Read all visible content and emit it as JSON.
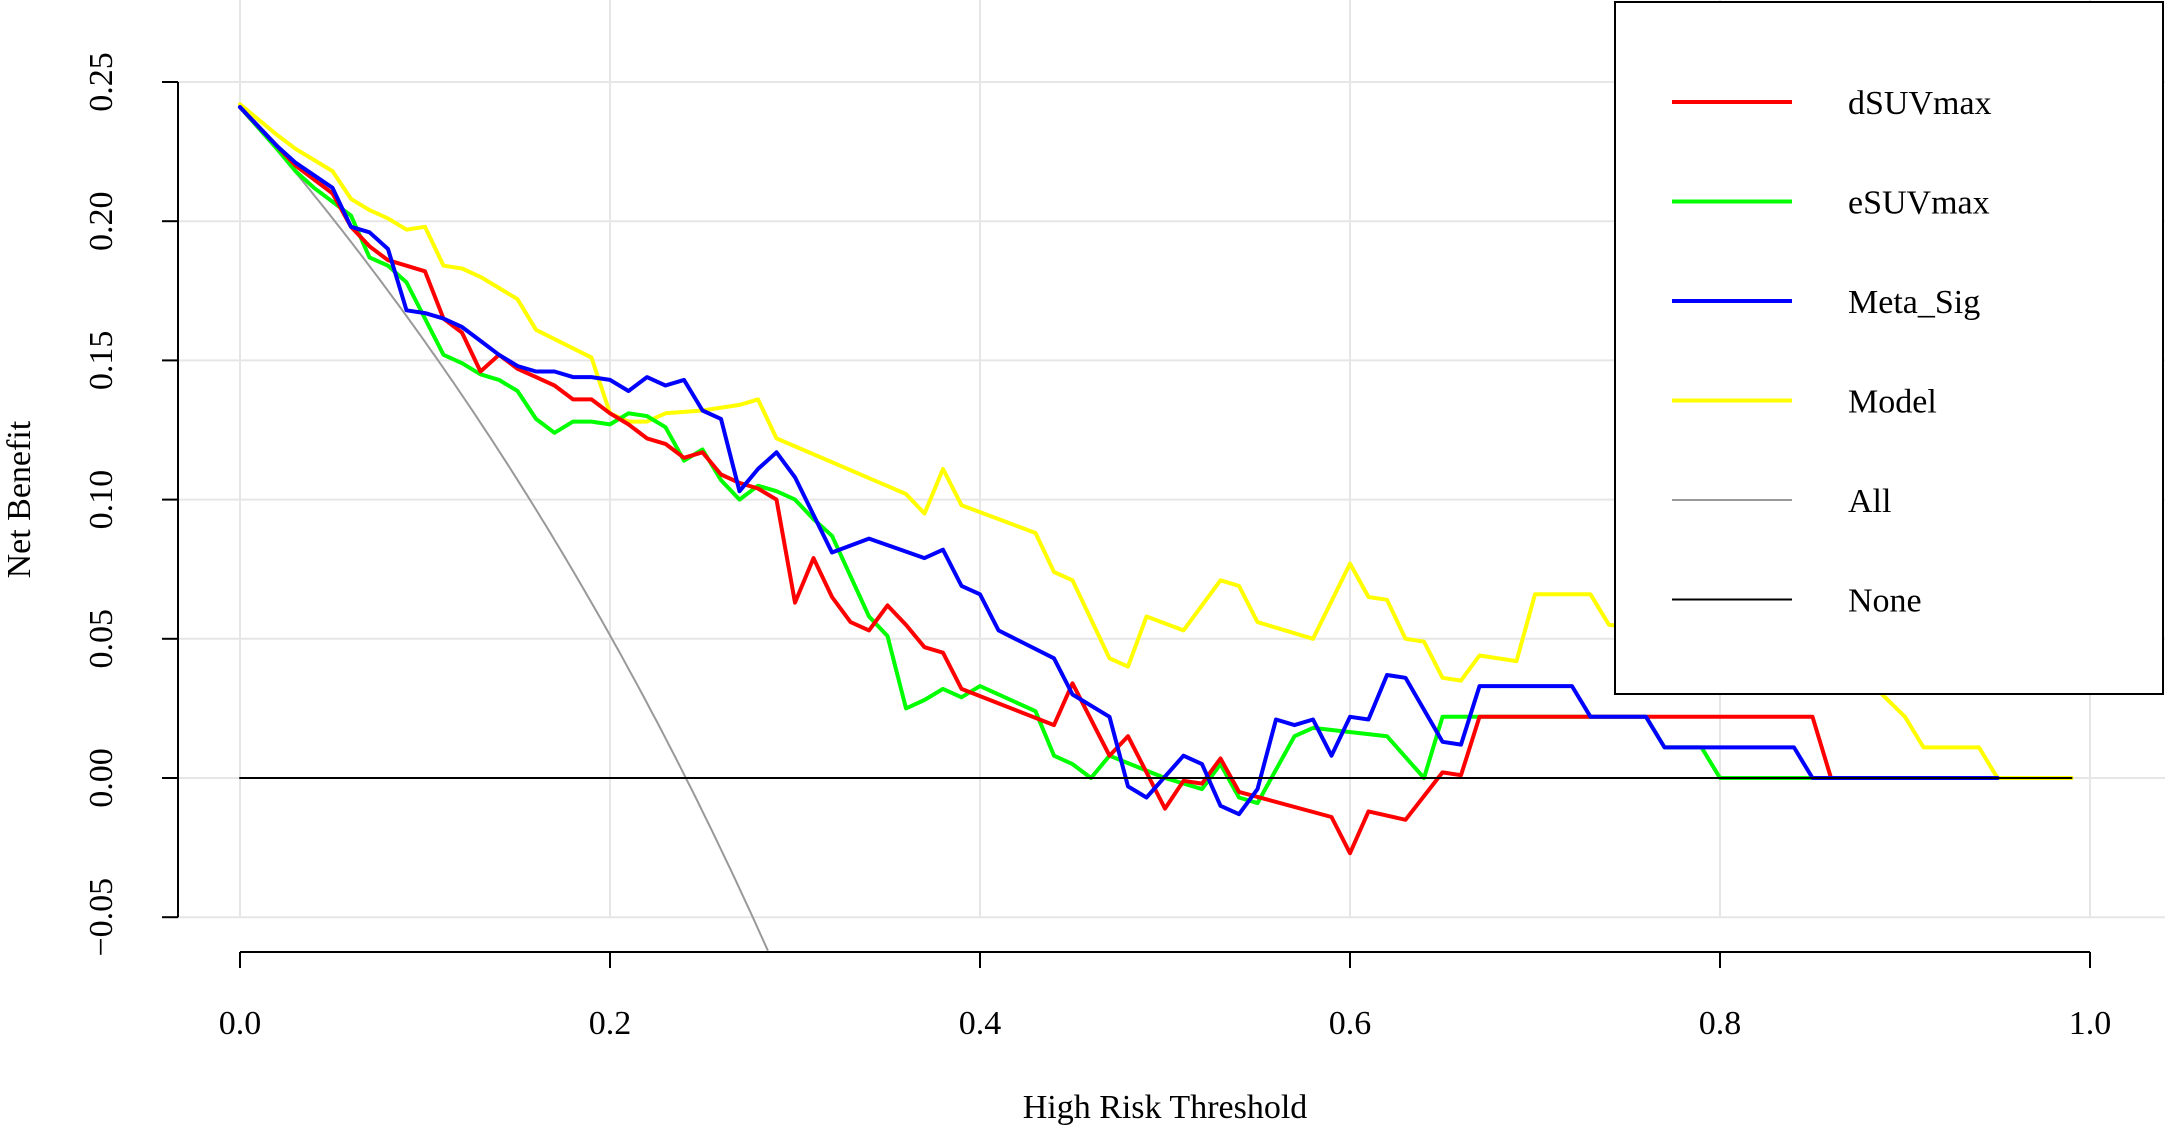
{
  "chart_data": {
    "type": "line",
    "title": "",
    "xlabel": "High Risk Threshold",
    "ylabel": "Net Benefit",
    "xlim": [
      0,
      1
    ],
    "ylim": [
      -0.05,
      0.25
    ],
    "x_ticks": [
      "0.0",
      "0.2",
      "0.4",
      "0.6",
      "0.8",
      "1.0"
    ],
    "y_ticks": [
      "−0.05",
      "0.00",
      "0.05",
      "0.10",
      "0.15",
      "0.20",
      "0.25"
    ],
    "grid": true,
    "legend_position": "top-right",
    "series": [
      {
        "name": "dSUVmax",
        "color": "#ff0000",
        "points": [
          [
            0.0,
            0.241
          ],
          [
            0.02,
            0.227
          ],
          [
            0.03,
            0.22
          ],
          [
            0.05,
            0.21
          ],
          [
            0.06,
            0.198
          ],
          [
            0.07,
            0.191
          ],
          [
            0.08,
            0.186
          ],
          [
            0.09,
            0.184
          ],
          [
            0.1,
            0.182
          ],
          [
            0.11,
            0.165
          ],
          [
            0.12,
            0.16
          ],
          [
            0.13,
            0.146
          ],
          [
            0.14,
            0.152
          ],
          [
            0.15,
            0.147
          ],
          [
            0.16,
            0.144
          ],
          [
            0.17,
            0.141
          ],
          [
            0.18,
            0.136
          ],
          [
            0.19,
            0.136
          ],
          [
            0.2,
            0.131
          ],
          [
            0.21,
            0.127
          ],
          [
            0.22,
            0.122
          ],
          [
            0.23,
            0.12
          ],
          [
            0.24,
            0.115
          ],
          [
            0.25,
            0.117
          ],
          [
            0.26,
            0.109
          ],
          [
            0.27,
            0.106
          ],
          [
            0.28,
            0.104
          ],
          [
            0.29,
            0.1
          ],
          [
            0.3,
            0.063
          ],
          [
            0.31,
            0.079
          ],
          [
            0.32,
            0.065
          ],
          [
            0.33,
            0.056
          ],
          [
            0.34,
            0.053
          ],
          [
            0.35,
            0.062
          ],
          [
            0.36,
            0.055
          ],
          [
            0.37,
            0.047
          ],
          [
            0.38,
            0.045
          ],
          [
            0.39,
            0.032
          ],
          [
            0.44,
            0.019
          ],
          [
            0.45,
            0.034
          ],
          [
            0.47,
            0.008
          ],
          [
            0.48,
            0.015
          ],
          [
            0.49,
            0.002
          ],
          [
            0.5,
            -0.011
          ],
          [
            0.51,
            -0.001
          ],
          [
            0.52,
            -0.002
          ],
          [
            0.53,
            0.007
          ],
          [
            0.54,
            -0.005
          ],
          [
            0.59,
            -0.014
          ],
          [
            0.6,
            -0.027
          ],
          [
            0.61,
            -0.012
          ],
          [
            0.63,
            -0.015
          ],
          [
            0.65,
            0.002
          ],
          [
            0.66,
            0.001
          ],
          [
            0.67,
            0.022
          ],
          [
            0.85,
            0.022
          ],
          [
            0.86,
            0.0
          ],
          [
            0.95,
            0.0
          ]
        ]
      },
      {
        "name": "eSUVmax",
        "color": "#00ff00",
        "points": [
          [
            0.0,
            0.241
          ],
          [
            0.02,
            0.226
          ],
          [
            0.03,
            0.218
          ],
          [
            0.04,
            0.212
          ],
          [
            0.06,
            0.202
          ],
          [
            0.07,
            0.187
          ],
          [
            0.08,
            0.184
          ],
          [
            0.09,
            0.178
          ],
          [
            0.1,
            0.165
          ],
          [
            0.11,
            0.152
          ],
          [
            0.12,
            0.149
          ],
          [
            0.13,
            0.145
          ],
          [
            0.14,
            0.143
          ],
          [
            0.15,
            0.139
          ],
          [
            0.16,
            0.129
          ],
          [
            0.17,
            0.124
          ],
          [
            0.18,
            0.128
          ],
          [
            0.19,
            0.128
          ],
          [
            0.2,
            0.127
          ],
          [
            0.21,
            0.131
          ],
          [
            0.22,
            0.13
          ],
          [
            0.23,
            0.126
          ],
          [
            0.24,
            0.114
          ],
          [
            0.25,
            0.118
          ],
          [
            0.26,
            0.107
          ],
          [
            0.27,
            0.1
          ],
          [
            0.28,
            0.105
          ],
          [
            0.29,
            0.103
          ],
          [
            0.3,
            0.1
          ],
          [
            0.31,
            0.093
          ],
          [
            0.32,
            0.087
          ],
          [
            0.34,
            0.058
          ],
          [
            0.35,
            0.051
          ],
          [
            0.36,
            0.025
          ],
          [
            0.37,
            0.028
          ],
          [
            0.38,
            0.032
          ],
          [
            0.39,
            0.029
          ],
          [
            0.4,
            0.033
          ],
          [
            0.43,
            0.024
          ],
          [
            0.44,
            0.008
          ],
          [
            0.45,
            0.005
          ],
          [
            0.46,
            0.0
          ],
          [
            0.47,
            0.008
          ],
          [
            0.5,
            0.0
          ],
          [
            0.52,
            -0.004
          ],
          [
            0.53,
            0.005
          ],
          [
            0.54,
            -0.007
          ],
          [
            0.55,
            -0.009
          ],
          [
            0.57,
            0.015
          ],
          [
            0.58,
            0.018
          ],
          [
            0.62,
            0.015
          ],
          [
            0.64,
            0.0
          ],
          [
            0.65,
            0.022
          ],
          [
            0.76,
            0.022
          ],
          [
            0.77,
            0.011
          ],
          [
            0.79,
            0.011
          ],
          [
            0.8,
            0.0
          ],
          [
            0.86,
            0.0
          ]
        ]
      },
      {
        "name": "Meta_Sig",
        "color": "#0000ff",
        "points": [
          [
            0.0,
            0.241
          ],
          [
            0.02,
            0.227
          ],
          [
            0.03,
            0.221
          ],
          [
            0.05,
            0.212
          ],
          [
            0.06,
            0.198
          ],
          [
            0.07,
            0.196
          ],
          [
            0.08,
            0.19
          ],
          [
            0.09,
            0.168
          ],
          [
            0.1,
            0.167
          ],
          [
            0.11,
            0.165
          ],
          [
            0.12,
            0.162
          ],
          [
            0.13,
            0.157
          ],
          [
            0.14,
            0.152
          ],
          [
            0.15,
            0.148
          ],
          [
            0.16,
            0.146
          ],
          [
            0.17,
            0.146
          ],
          [
            0.18,
            0.144
          ],
          [
            0.19,
            0.144
          ],
          [
            0.2,
            0.143
          ],
          [
            0.21,
            0.139
          ],
          [
            0.22,
            0.144
          ],
          [
            0.23,
            0.141
          ],
          [
            0.24,
            0.143
          ],
          [
            0.25,
            0.132
          ],
          [
            0.26,
            0.129
          ],
          [
            0.27,
            0.103
          ],
          [
            0.28,
            0.111
          ],
          [
            0.29,
            0.117
          ],
          [
            0.3,
            0.108
          ],
          [
            0.32,
            0.081
          ],
          [
            0.34,
            0.086
          ],
          [
            0.37,
            0.079
          ],
          [
            0.38,
            0.082
          ],
          [
            0.39,
            0.069
          ],
          [
            0.4,
            0.066
          ],
          [
            0.41,
            0.053
          ],
          [
            0.44,
            0.043
          ],
          [
            0.45,
            0.03
          ],
          [
            0.47,
            0.022
          ],
          [
            0.48,
            -0.003
          ],
          [
            0.49,
            -0.007
          ],
          [
            0.51,
            0.008
          ],
          [
            0.52,
            0.005
          ],
          [
            0.53,
            -0.01
          ],
          [
            0.54,
            -0.013
          ],
          [
            0.55,
            -0.004
          ],
          [
            0.56,
            0.021
          ],
          [
            0.57,
            0.019
          ],
          [
            0.58,
            0.021
          ],
          [
            0.59,
            0.008
          ],
          [
            0.6,
            0.022
          ],
          [
            0.61,
            0.021
          ],
          [
            0.62,
            0.037
          ],
          [
            0.63,
            0.036
          ],
          [
            0.65,
            0.013
          ],
          [
            0.66,
            0.012
          ],
          [
            0.67,
            0.033
          ],
          [
            0.72,
            0.033
          ],
          [
            0.73,
            0.022
          ],
          [
            0.76,
            0.022
          ],
          [
            0.77,
            0.011
          ],
          [
            0.84,
            0.011
          ],
          [
            0.85,
            0.0
          ],
          [
            0.95,
            0.0
          ]
        ]
      },
      {
        "name": "Model",
        "color": "#ffff00",
        "points": [
          [
            0.0,
            0.242
          ],
          [
            0.02,
            0.231
          ],
          [
            0.03,
            0.226
          ],
          [
            0.04,
            0.222
          ],
          [
            0.05,
            0.218
          ],
          [
            0.06,
            0.208
          ],
          [
            0.07,
            0.204
          ],
          [
            0.08,
            0.201
          ],
          [
            0.09,
            0.197
          ],
          [
            0.1,
            0.198
          ],
          [
            0.11,
            0.184
          ],
          [
            0.12,
            0.183
          ],
          [
            0.13,
            0.18
          ],
          [
            0.14,
            0.176
          ],
          [
            0.15,
            0.172
          ],
          [
            0.16,
            0.161
          ],
          [
            0.19,
            0.151
          ],
          [
            0.2,
            0.131
          ],
          [
            0.21,
            0.128
          ],
          [
            0.22,
            0.128
          ],
          [
            0.23,
            0.131
          ],
          [
            0.25,
            0.132
          ],
          [
            0.27,
            0.134
          ],
          [
            0.28,
            0.136
          ],
          [
            0.29,
            0.122
          ],
          [
            0.36,
            0.102
          ],
          [
            0.37,
            0.095
          ],
          [
            0.38,
            0.111
          ],
          [
            0.39,
            0.098
          ],
          [
            0.43,
            0.088
          ],
          [
            0.44,
            0.074
          ],
          [
            0.45,
            0.071
          ],
          [
            0.47,
            0.043
          ],
          [
            0.48,
            0.04
          ],
          [
            0.49,
            0.058
          ],
          [
            0.51,
            0.053
          ],
          [
            0.53,
            0.071
          ],
          [
            0.54,
            0.069
          ],
          [
            0.55,
            0.056
          ],
          [
            0.58,
            0.05
          ],
          [
            0.6,
            0.077
          ],
          [
            0.61,
            0.065
          ],
          [
            0.62,
            0.064
          ],
          [
            0.63,
            0.05
          ],
          [
            0.64,
            0.049
          ],
          [
            0.65,
            0.036
          ],
          [
            0.66,
            0.035
          ],
          [
            0.67,
            0.044
          ],
          [
            0.69,
            0.042
          ],
          [
            0.7,
            0.066
          ],
          [
            0.73,
            0.066
          ],
          [
            0.74,
            0.055
          ],
          [
            0.76,
            0.054
          ],
          [
            0.77,
            0.044
          ],
          [
            0.87,
            0.044
          ],
          [
            0.88,
            0.035
          ],
          [
            0.9,
            0.022
          ],
          [
            0.91,
            0.011
          ],
          [
            0.94,
            0.011
          ],
          [
            0.95,
            0.0
          ],
          [
            0.99,
            0.0
          ]
        ]
      },
      {
        "name": "All",
        "color": "#999999",
        "prevalence": 0.241,
        "x_range": [
          0.0,
          0.3
        ]
      },
      {
        "name": "None",
        "color": "#000000",
        "points": [
          [
            0.0,
            0.0
          ],
          [
            0.99,
            0.0
          ]
        ]
      }
    ]
  }
}
